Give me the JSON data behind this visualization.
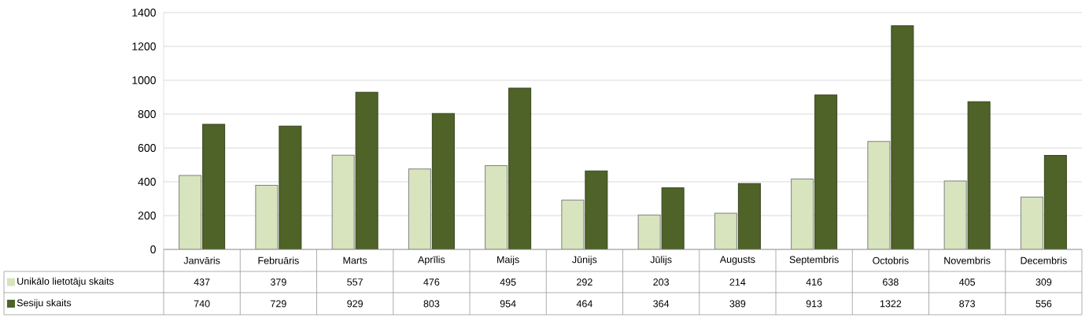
{
  "chart_data": {
    "type": "bar",
    "categories": [
      "Janvāris",
      "Februāris",
      "Marts",
      "Aprīlis",
      "Maijs",
      "Jūnijs",
      "Jūlijs",
      "Augusts",
      "Septembris",
      "Octobris",
      "Novembris",
      "Decembris"
    ],
    "series": [
      {
        "name": "Unikālo lietotāju skaits",
        "color": "#d7e4bd",
        "values": [
          437,
          379,
          557,
          476,
          495,
          292,
          203,
          214,
          416,
          638,
          405,
          309
        ]
      },
      {
        "name": "Sesiju skaits",
        "color": "#4f6228",
        "values": [
          740,
          729,
          929,
          803,
          954,
          464,
          364,
          389,
          913,
          1322,
          873,
          556
        ]
      }
    ],
    "ylim": [
      0,
      1400
    ],
    "yticks": [
      0,
      200,
      400,
      600,
      800,
      1000,
      1200,
      1400
    ],
    "grid": "y",
    "legend": "bottom left",
    "data_labels": true
  }
}
